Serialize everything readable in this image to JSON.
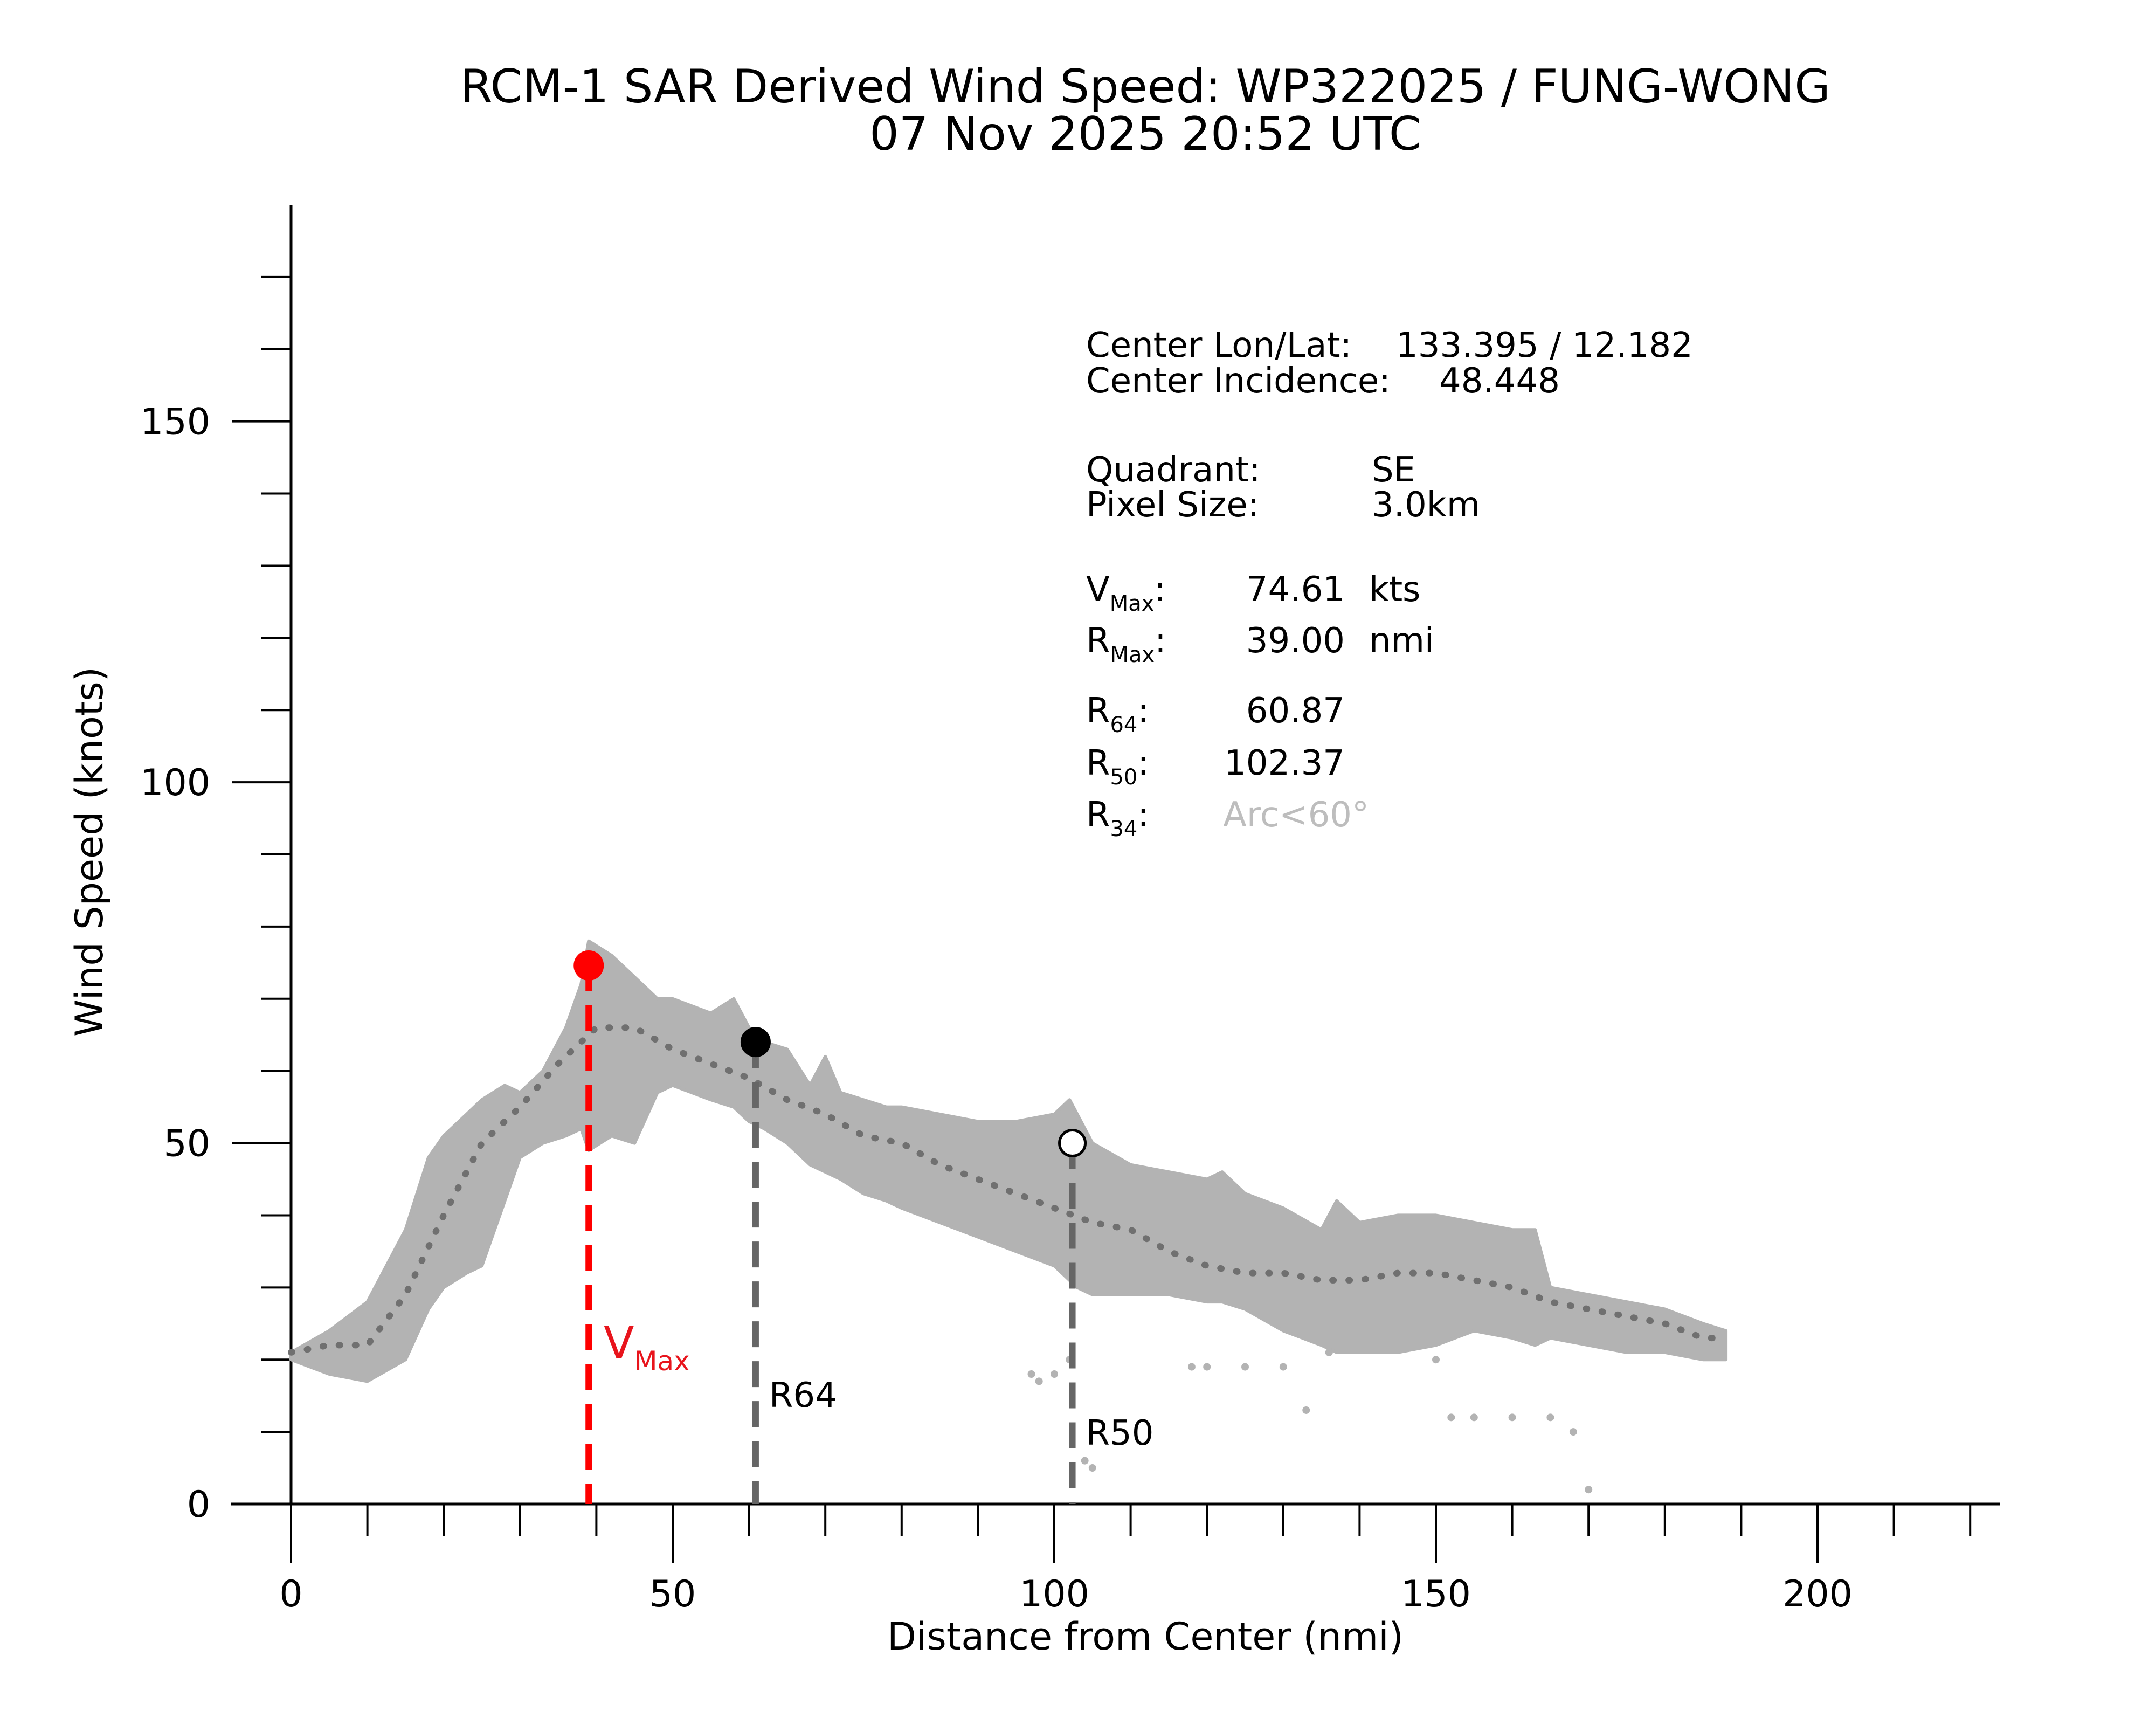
{
  "chart_data": {
    "type": "scatter",
    "title": "RCM-1 SAR Derived Wind Speed: WP322025 / FUNG-WONG",
    "subtitle": "07 Nov 2025 20:52 UTC",
    "xlabel": "Distance from Center (nmi)",
    "ylabel": "Wind Speed (knots)",
    "xlim": [
      -8,
      224
    ],
    "ylim": [
      0,
      180
    ],
    "xticks": [
      0,
      50,
      100,
      150,
      200
    ],
    "yticks": [
      0,
      50,
      100,
      150
    ],
    "grid": false,
    "series": [
      {
        "name": "Wind speed samples (upper envelope)",
        "color": "#b3b3b3",
        "x": [
          0,
          5,
          10,
          15,
          18,
          20,
          23,
          25,
          28,
          30,
          33,
          36,
          38,
          39,
          42,
          45,
          48,
          50,
          55,
          58,
          60,
          62,
          65,
          68,
          70,
          72,
          75,
          78,
          80,
          85,
          90,
          95,
          100,
          102,
          103,
          105,
          110,
          115,
          120,
          122,
          125,
          130,
          135,
          137,
          140,
          145,
          150,
          155,
          160,
          163,
          165,
          170,
          175,
          180,
          185,
          188
        ],
        "y": [
          21,
          24,
          28,
          38,
          48,
          51,
          54,
          56,
          58,
          57,
          60,
          66,
          72,
          78,
          76,
          73,
          70,
          70,
          68,
          70,
          66,
          64,
          63,
          58,
          62,
          57,
          56,
          55,
          55,
          54,
          53,
          53,
          54,
          56,
          54,
          50,
          47,
          46,
          45,
          46,
          43,
          41,
          38,
          42,
          39,
          40,
          40,
          39,
          38,
          38,
          30,
          29,
          28,
          27,
          25,
          24
        ]
      },
      {
        "name": "Wind speed samples (lower envelope)",
        "color": "#b3b3b3",
        "x": [
          0,
          5,
          10,
          15,
          18,
          20,
          23,
          25,
          28,
          30,
          33,
          36,
          38,
          39,
          42,
          45,
          48,
          50,
          55,
          58,
          60,
          62,
          65,
          68,
          70,
          72,
          75,
          78,
          80,
          85,
          90,
          95,
          100,
          102,
          103,
          105,
          110,
          115,
          120,
          122,
          125,
          130,
          135,
          137,
          140,
          145,
          150,
          155,
          160,
          163,
          165,
          170,
          175,
          180,
          185,
          188
        ],
        "y": [
          20,
          18,
          17,
          20,
          27,
          30,
          32,
          33,
          42,
          48,
          50,
          51,
          52,
          49,
          51,
          50,
          57,
          58,
          56,
          55,
          53,
          52,
          50,
          47,
          46,
          45,
          43,
          42,
          41,
          39,
          37,
          35,
          33,
          31,
          30,
          29,
          29,
          29,
          28,
          28,
          27,
          24,
          22,
          21,
          21,
          21,
          22,
          24,
          23,
          22,
          23,
          22,
          21,
          21,
          20,
          20
        ]
      },
      {
        "name": "Mean profile",
        "style": "dotted",
        "color": "#707070",
        "x": [
          0,
          5,
          10,
          15,
          20,
          25,
          30,
          35,
          40,
          45,
          50,
          55,
          60,
          65,
          70,
          75,
          80,
          85,
          90,
          95,
          100,
          105,
          110,
          115,
          120,
          125,
          130,
          135,
          140,
          145,
          150,
          155,
          160,
          165,
          170,
          175,
          180,
          185,
          188
        ],
        "y": [
          21,
          22,
          22,
          29,
          40,
          50,
          55,
          61,
          66,
          66,
          63,
          61,
          59,
          56,
          54,
          51,
          50,
          47,
          45,
          43,
          41,
          39,
          38,
          35,
          33,
          32,
          32,
          31,
          31,
          32,
          32,
          31,
          30,
          28,
          27,
          26,
          25,
          23,
          23
        ]
      },
      {
        "name": "Outlier samples",
        "color": "#b3b3b3",
        "x": [
          97,
          98,
          100,
          102,
          104,
          105,
          118,
          120,
          125,
          130,
          133,
          136,
          150,
          152,
          155,
          160,
          165,
          168,
          170
        ],
        "y": [
          18,
          17,
          18,
          20,
          6,
          5,
          19,
          19,
          19,
          19,
          13,
          21,
          20,
          12,
          12,
          12,
          12,
          10,
          2
        ]
      }
    ],
    "markers": [
      {
        "name": "VMax",
        "x": 39.0,
        "y": 74.61,
        "color": "#ff0000",
        "fill": "#ff0000"
      },
      {
        "name": "R64",
        "x": 60.87,
        "y": 64,
        "color": "#000000",
        "fill": "#000000"
      },
      {
        "name": "R50",
        "x": 102.37,
        "y": 50,
        "color": "#000000",
        "fill": "#ffffff"
      }
    ],
    "annotations": [
      {
        "text": "V",
        "sub": "Max",
        "color": "#ff0000"
      },
      {
        "text": "R64"
      },
      {
        "text": "R50"
      }
    ]
  },
  "info": {
    "center_lonlat_label": "Center Lon/Lat:",
    "center_lonlat_value": "133.395 /  12.182",
    "center_incidence_label": "Center Incidence:",
    "center_incidence_value": "48.448",
    "quadrant_label": "Quadrant:",
    "quadrant_value": "SE",
    "pixel_size_label": "Pixel Size:",
    "pixel_size_value": "3.0km",
    "vmax_main": "V",
    "vmax_sub": "Max",
    "vmax_value": "74.61",
    "vmax_unit": "kts",
    "rmax_main": "R",
    "rmax_sub": "Max",
    "rmax_value": "39.00",
    "rmax_unit": "nmi",
    "r64_main": "R",
    "r64_sub": "64",
    "r64_value": "60.87",
    "r50_main": "R",
    "r50_sub": "50",
    "r50_value": "102.37",
    "r34_main": "R",
    "r34_sub": "34",
    "r34_value": "Arc<60°",
    "colon": ":"
  },
  "colors": {
    "scatter": "#b3b3b3",
    "mean": "#707070",
    "vmax": "#ff0000",
    "radius_line": "#666666",
    "na_text": "#bdbdbd"
  }
}
